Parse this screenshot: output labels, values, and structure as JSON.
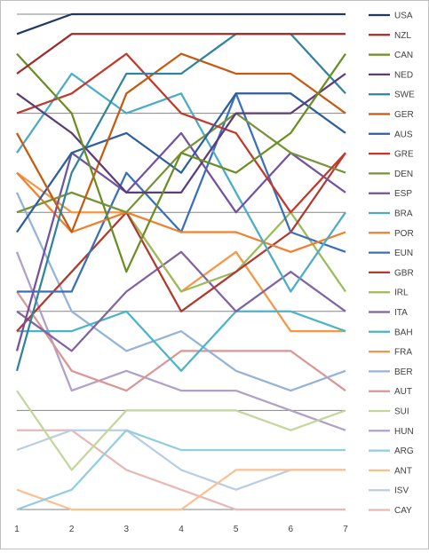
{
  "chart_data": {
    "type": "line",
    "title": "",
    "xlabel": "",
    "ylabel": "",
    "x": [
      "1",
      "2",
      "3",
      "4",
      "5",
      "6",
      "7"
    ],
    "ylim": [
      25,
      0
    ],
    "grid": true,
    "legend_position": "right",
    "series": [
      {
        "name": "USA",
        "color": "#1f3864",
        "values": [
          1.0,
          0.0,
          0.0,
          0.0,
          0.0,
          0.0,
          0.0
        ]
      },
      {
        "name": "NZL",
        "color": "#9b2d2d",
        "values": [
          3.0,
          1.0,
          1.0,
          1.0,
          1.0,
          1.0,
          1.0
        ]
      },
      {
        "name": "CAN",
        "color": "#6b8e23",
        "values": [
          2.0,
          5.0,
          13.0,
          7.0,
          8.0,
          6.0,
          2.0
        ]
      },
      {
        "name": "NED",
        "color": "#5c3d7a",
        "values": [
          4.0,
          6.0,
          9.0,
          9.0,
          5.0,
          5.0,
          3.0
        ]
      },
      {
        "name": "SWE",
        "color": "#31849b",
        "values": [
          18.0,
          8.0,
          3.0,
          3.0,
          1.0,
          1.0,
          4.0
        ]
      },
      {
        "name": "GER",
        "color": "#c55a11",
        "values": [
          6.0,
          11.0,
          4.0,
          2.0,
          3.0,
          3.0,
          5.0
        ]
      },
      {
        "name": "AUS",
        "color": "#2e5e9e",
        "values": [
          11.0,
          7.0,
          6.0,
          8.0,
          4.0,
          4.0,
          6.0
        ]
      },
      {
        "name": "GRE",
        "color": "#c0392b",
        "values": [
          5.0,
          4.0,
          2.0,
          5.0,
          6.0,
          10.0,
          7.0
        ]
      },
      {
        "name": "DEN",
        "color": "#77933c",
        "values": [
          10.0,
          9.0,
          10.0,
          7.0,
          5.0,
          7.0,
          8.0
        ]
      },
      {
        "name": "ESP",
        "color": "#7153a0",
        "values": [
          17.0,
          7.0,
          9.0,
          6.0,
          10.0,
          7.0,
          9.0
        ]
      },
      {
        "name": "BRA",
        "color": "#4bacc6",
        "values": [
          7.0,
          3.0,
          5.0,
          4.0,
          9.0,
          14.0,
          10.0
        ]
      },
      {
        "name": "POR",
        "color": "#f08030",
        "values": [
          8.0,
          11.0,
          10.0,
          11.0,
          11.0,
          12.0,
          11.0
        ]
      },
      {
        "name": "EUN",
        "color": "#3a6fba",
        "values": [
          14.0,
          14.0,
          8.0,
          11.0,
          4.0,
          11.0,
          12.0
        ]
      },
      {
        "name": "GBR",
        "color": "#b03a30",
        "values": [
          16.0,
          13.0,
          10.0,
          15.0,
          13.0,
          11.0,
          7.0
        ]
      },
      {
        "name": "IRL",
        "color": "#9bbb59",
        "values": [
          10.0,
          9.0,
          10.0,
          14.0,
          13.0,
          10.0,
          14.0
        ]
      },
      {
        "name": "ITA",
        "color": "#8064a2",
        "values": [
          15.0,
          17.0,
          14.0,
          12.0,
          15.0,
          13.0,
          15.0
        ]
      },
      {
        "name": "BAH",
        "color": "#4ab4c8",
        "values": [
          16.0,
          16.0,
          15.0,
          18.0,
          15.0,
          15.0,
          16.0
        ]
      },
      {
        "name": "FRA",
        "color": "#f79646",
        "values": [
          8.0,
          10.0,
          10.0,
          14.0,
          12.0,
          16.0,
          16.0
        ]
      },
      {
        "name": "BER",
        "color": "#95b3d7",
        "values": [
          9.0,
          15.0,
          17.0,
          16.0,
          18.0,
          19.0,
          18.0
        ]
      },
      {
        "name": "AUT",
        "color": "#d99694",
        "values": [
          14.0,
          18.0,
          19.0,
          17.0,
          17.0,
          17.0,
          19.0
        ]
      },
      {
        "name": "SUI",
        "color": "#c3d69b",
        "values": [
          19.0,
          23.0,
          20.0,
          20.0,
          20.0,
          21.0,
          20.0
        ]
      },
      {
        "name": "HUN",
        "color": "#b1a0c7",
        "values": [
          12.0,
          19.0,
          18.0,
          19.0,
          19.0,
          20.0,
          21.0
        ]
      },
      {
        "name": "ARG",
        "color": "#93cddd",
        "values": [
          25.0,
          24.0,
          21.0,
          22.0,
          22.0,
          22.0,
          22.0
        ]
      },
      {
        "name": "ANT",
        "color": "#fac090",
        "values": [
          24.0,
          25.0,
          25.0,
          25.0,
          23.0,
          23.0,
          23.0
        ]
      },
      {
        "name": "ISV",
        "color": "#b9cde5",
        "values": [
          22.0,
          21.0,
          21.0,
          23.0,
          24.0,
          23.0,
          23.0
        ]
      },
      {
        "name": "CAY",
        "color": "#e6b9b8",
        "values": [
          21.0,
          21.0,
          23.0,
          24.0,
          25.0,
          25.0,
          25.0
        ]
      }
    ]
  }
}
